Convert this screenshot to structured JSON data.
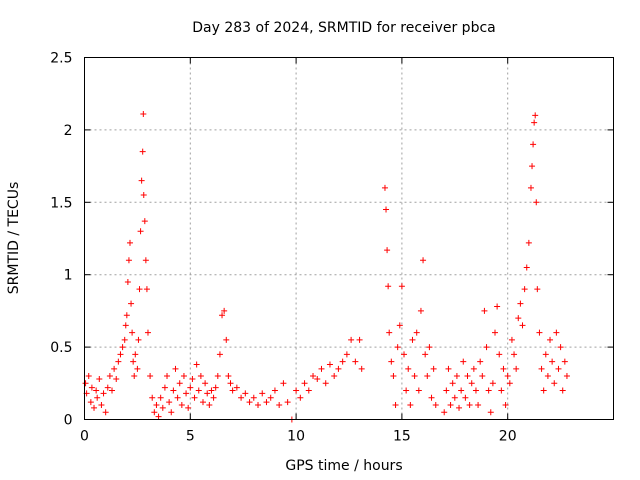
{
  "chart_data": {
    "type": "scatter",
    "title": "Day 283 of 2024, SRMTID for receiver pbca",
    "xlabel": "GPS time / hours",
    "ylabel": "SRMTID / TECUs",
    "xlim": [
      0,
      25
    ],
    "ylim": [
      0,
      2.5
    ],
    "xticks": [
      0,
      5,
      10,
      15,
      20
    ],
    "xtick_labels": [
      "0",
      "5",
      "10",
      "15",
      "20"
    ],
    "yticks": [
      0,
      0.5,
      1,
      1.5,
      2,
      2.5
    ],
    "ytick_labels": [
      "0",
      "0.5",
      "1",
      "1.5",
      "2",
      "2.5"
    ],
    "grid": true,
    "marker": "+",
    "color": "#ff0000",
    "series": [
      {
        "name": "SRMTID",
        "points": [
          [
            0.05,
            0.25
          ],
          [
            0.1,
            0.18
          ],
          [
            0.2,
            0.3
          ],
          [
            0.3,
            0.12
          ],
          [
            0.35,
            0.22
          ],
          [
            0.45,
            0.08
          ],
          [
            0.55,
            0.2
          ],
          [
            0.6,
            0.15
          ],
          [
            0.7,
            0.28
          ],
          [
            0.8,
            0.1
          ],
          [
            0.9,
            0.18
          ],
          [
            1.0,
            0.05
          ],
          [
            1.1,
            0.22
          ],
          [
            1.2,
            0.3
          ],
          [
            1.3,
            0.2
          ],
          [
            1.4,
            0.35
          ],
          [
            1.5,
            0.28
          ],
          [
            1.6,
            0.4
          ],
          [
            1.7,
            0.45
          ],
          [
            1.8,
            0.5
          ],
          [
            1.9,
            0.55
          ],
          [
            1.95,
            0.65
          ],
          [
            2.0,
            0.72
          ],
          [
            2.05,
            0.95
          ],
          [
            2.1,
            1.1
          ],
          [
            2.15,
            1.22
          ],
          [
            2.2,
            0.8
          ],
          [
            2.25,
            0.6
          ],
          [
            2.3,
            0.4
          ],
          [
            2.35,
            0.3
          ],
          [
            2.4,
            0.45
          ],
          [
            2.5,
            0.35
          ],
          [
            2.55,
            0.55
          ],
          [
            2.6,
            0.9
          ],
          [
            2.65,
            1.3
          ],
          [
            2.7,
            1.65
          ],
          [
            2.75,
            1.85
          ],
          [
            2.78,
            2.11
          ],
          [
            2.8,
            1.55
          ],
          [
            2.85,
            1.37
          ],
          [
            2.9,
            1.1
          ],
          [
            2.95,
            0.9
          ],
          [
            3.0,
            0.6
          ],
          [
            3.1,
            0.3
          ],
          [
            3.2,
            0.15
          ],
          [
            3.3,
            0.05
          ],
          [
            3.4,
            0.1
          ],
          [
            3.5,
            0.02
          ],
          [
            3.6,
            0.15
          ],
          [
            3.7,
            0.08
          ],
          [
            3.8,
            0.22
          ],
          [
            3.9,
            0.3
          ],
          [
            4.0,
            0.12
          ],
          [
            4.1,
            0.05
          ],
          [
            4.2,
            0.2
          ],
          [
            4.3,
            0.35
          ],
          [
            4.4,
            0.15
          ],
          [
            4.5,
            0.25
          ],
          [
            4.6,
            0.1
          ],
          [
            4.7,
            0.3
          ],
          [
            4.8,
            0.18
          ],
          [
            4.9,
            0.08
          ],
          [
            5.0,
            0.22
          ],
          [
            5.1,
            0.28
          ],
          [
            5.2,
            0.15
          ],
          [
            5.3,
            0.38
          ],
          [
            5.4,
            0.2
          ],
          [
            5.5,
            0.3
          ],
          [
            5.6,
            0.12
          ],
          [
            5.7,
            0.25
          ],
          [
            5.8,
            0.18
          ],
          [
            5.9,
            0.1
          ],
          [
            6.0,
            0.2
          ],
          [
            6.1,
            0.15
          ],
          [
            6.2,
            0.22
          ],
          [
            6.3,
            0.3
          ],
          [
            6.4,
            0.45
          ],
          [
            6.5,
            0.72
          ],
          [
            6.6,
            0.75
          ],
          [
            6.7,
            0.55
          ],
          [
            6.8,
            0.3
          ],
          [
            6.9,
            0.25
          ],
          [
            7.0,
            0.2
          ],
          [
            7.2,
            0.22
          ],
          [
            7.4,
            0.15
          ],
          [
            7.6,
            0.18
          ],
          [
            7.8,
            0.12
          ],
          [
            8.0,
            0.15
          ],
          [
            8.2,
            0.1
          ],
          [
            8.4,
            0.18
          ],
          [
            8.6,
            0.12
          ],
          [
            8.8,
            0.15
          ],
          [
            9.0,
            0.2
          ],
          [
            9.2,
            0.1
          ],
          [
            9.4,
            0.25
          ],
          [
            9.6,
            0.12
          ],
          [
            9.8,
            0.0
          ],
          [
            10.0,
            0.2
          ],
          [
            10.2,
            0.15
          ],
          [
            10.4,
            0.25
          ],
          [
            10.6,
            0.2
          ],
          [
            10.8,
            0.3
          ],
          [
            11.0,
            0.28
          ],
          [
            11.2,
            0.35
          ],
          [
            11.4,
            0.25
          ],
          [
            11.6,
            0.38
          ],
          [
            11.8,
            0.3
          ],
          [
            12.0,
            0.35
          ],
          [
            12.2,
            0.4
          ],
          [
            12.4,
            0.45
          ],
          [
            12.6,
            0.55
          ],
          [
            12.8,
            0.4
          ],
          [
            13.0,
            0.55
          ],
          [
            13.1,
            0.35
          ],
          [
            14.2,
            1.6
          ],
          [
            14.25,
            1.45
          ],
          [
            14.3,
            1.17
          ],
          [
            14.35,
            0.92
          ],
          [
            14.4,
            0.6
          ],
          [
            14.5,
            0.4
          ],
          [
            14.6,
            0.3
          ],
          [
            14.7,
            0.1
          ],
          [
            14.8,
            0.5
          ],
          [
            14.9,
            0.65
          ],
          [
            15.0,
            0.92
          ],
          [
            15.1,
            0.45
          ],
          [
            15.2,
            0.2
          ],
          [
            15.3,
            0.35
          ],
          [
            15.4,
            0.1
          ],
          [
            15.5,
            0.55
          ],
          [
            15.6,
            0.3
          ],
          [
            15.7,
            0.6
          ],
          [
            15.8,
            0.2
          ],
          [
            15.9,
            0.75
          ],
          [
            16.0,
            1.1
          ],
          [
            16.1,
            0.45
          ],
          [
            16.2,
            0.3
          ],
          [
            16.3,
            0.5
          ],
          [
            16.4,
            0.15
          ],
          [
            16.5,
            0.35
          ],
          [
            16.6,
            0.1
          ],
          [
            17.0,
            0.05
          ],
          [
            17.1,
            0.2
          ],
          [
            17.2,
            0.35
          ],
          [
            17.3,
            0.1
          ],
          [
            17.4,
            0.25
          ],
          [
            17.5,
            0.15
          ],
          [
            17.6,
            0.3
          ],
          [
            17.7,
            0.08
          ],
          [
            17.8,
            0.2
          ],
          [
            17.9,
            0.4
          ],
          [
            18.0,
            0.15
          ],
          [
            18.1,
            0.3
          ],
          [
            18.2,
            0.1
          ],
          [
            18.3,
            0.25
          ],
          [
            18.4,
            0.35
          ],
          [
            18.5,
            0.2
          ],
          [
            18.6,
            0.1
          ],
          [
            18.7,
            0.4
          ],
          [
            18.8,
            0.3
          ],
          [
            18.9,
            0.75
          ],
          [
            19.0,
            0.5
          ],
          [
            19.1,
            0.2
          ],
          [
            19.2,
            0.05
          ],
          [
            19.3,
            0.25
          ],
          [
            19.4,
            0.6
          ],
          [
            19.5,
            0.78
          ],
          [
            19.6,
            0.45
          ],
          [
            19.7,
            0.2
          ],
          [
            19.8,
            0.35
          ],
          [
            19.9,
            0.1
          ],
          [
            20.0,
            0.3
          ],
          [
            20.1,
            0.25
          ],
          [
            20.2,
            0.55
          ],
          [
            20.3,
            0.45
          ],
          [
            20.4,
            0.35
          ],
          [
            20.5,
            0.7
          ],
          [
            20.6,
            0.8
          ],
          [
            20.7,
            0.65
          ],
          [
            20.8,
            0.9
          ],
          [
            20.9,
            1.05
          ],
          [
            21.0,
            1.22
          ],
          [
            21.1,
            1.6
          ],
          [
            21.15,
            1.75
          ],
          [
            21.2,
            1.9
          ],
          [
            21.25,
            2.05
          ],
          [
            21.3,
            2.1
          ],
          [
            21.35,
            1.5
          ],
          [
            21.4,
            0.9
          ],
          [
            21.5,
            0.6
          ],
          [
            21.6,
            0.35
          ],
          [
            21.7,
            0.2
          ],
          [
            21.8,
            0.45
          ],
          [
            21.9,
            0.3
          ],
          [
            22.0,
            0.55
          ],
          [
            22.1,
            0.4
          ],
          [
            22.2,
            0.25
          ],
          [
            22.3,
            0.6
          ],
          [
            22.4,
            0.35
          ],
          [
            22.5,
            0.5
          ],
          [
            22.6,
            0.2
          ],
          [
            22.7,
            0.4
          ],
          [
            22.8,
            0.3
          ]
        ]
      }
    ]
  }
}
